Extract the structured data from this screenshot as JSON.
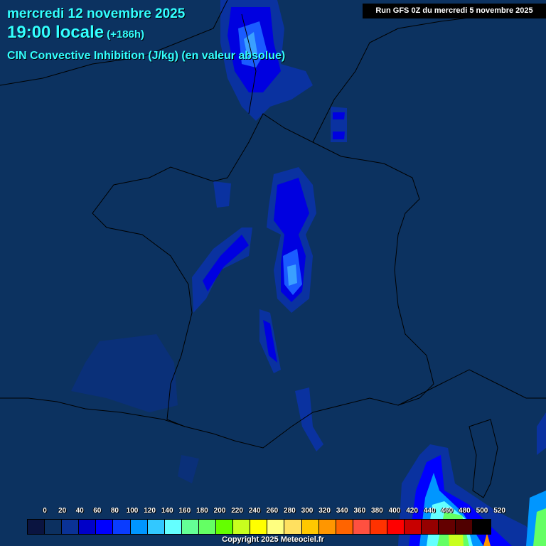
{
  "header": {
    "date": "mercredi 12 novembre 2025",
    "time": "19:00 locale",
    "lead": "(+186h)",
    "parameter": "CIN Convective Inhibition (J/kg) (en valeur absolue)",
    "run": "Run GFS 0Z du mercredi 5 novembre 2025"
  },
  "legend": {
    "labels": [
      "0",
      "20",
      "40",
      "60",
      "80",
      "100",
      "120",
      "140",
      "160",
      "180",
      "200",
      "220",
      "240",
      "260",
      "280",
      "300",
      "320",
      "340",
      "360",
      "380",
      "400",
      "420",
      "440",
      "460",
      "480",
      "500",
      "520"
    ],
    "colors": [
      "#0a1440",
      "#0c3060",
      "#0a3296",
      "#0000c8",
      "#0000ff",
      "#0a3cff",
      "#0096ff",
      "#32c8ff",
      "#64ffff",
      "#64ff96",
      "#64ff64",
      "#64ff00",
      "#c8ff1e",
      "#ffff00",
      "#ffff80",
      "#ffe060",
      "#ffc800",
      "#ff9600",
      "#ff6400",
      "#ff5040",
      "#ff3200",
      "#ff0000",
      "#c80000",
      "#960000",
      "#640000",
      "#500000",
      "#000000"
    ]
  },
  "footer": {
    "copyright": "Copyright 2025 Meteociel.fr"
  },
  "colors": {
    "background": "#0c3260",
    "title": "#33ffff",
    "border_lines": "#000000"
  }
}
